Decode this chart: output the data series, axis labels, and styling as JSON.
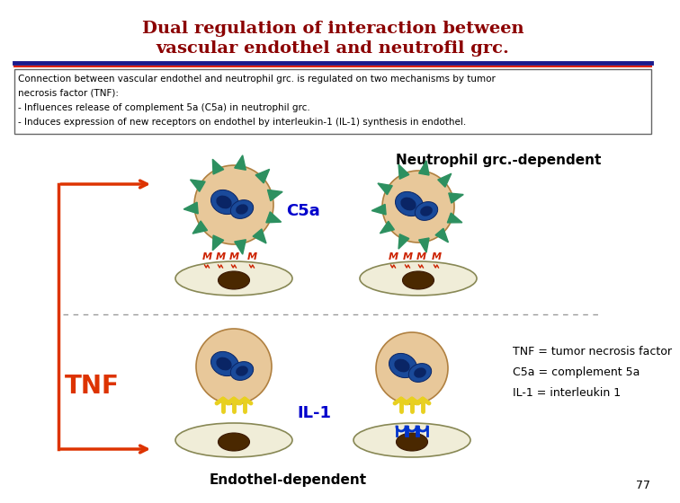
{
  "title_line1": "Dual regulation of interaction between",
  "title_line2": "vascular endothel and neutrofil grc.",
  "title_color": "#8B0000",
  "title_fontsize": 14,
  "sep_color_top": "#1a1a8c",
  "sep_color_bot": "#dd2200",
  "text_box_lines": [
    "Connection between vascular endothel and neutrophil grc. is regulated on two mechanisms by tumor",
    "necrosis factor (TNF):",
    "- Influences release of complement 5a (C5a) in neutrophil grc.",
    "- Induces expression of new receptors on endothel by interleukin-1 (IL-1) synthesis in endothel."
  ],
  "neutrophil_label": "Neutrophil grc.-dependent",
  "endothel_label": "Endothel-dependent",
  "C5a_label": "C5a",
  "IL1_label": "IL-1",
  "TNF_label": "TNF",
  "legend_text": "TNF = tumor necrosis factor\nC5a = complement 5a\nIL-1 = interleukin 1",
  "page_number": "77",
  "bg_color": "#ffffff",
  "arrow_color": "#dd3300",
  "cell_body_color": "#e8c89a",
  "nucleus_outer_color": "#1a4a9a",
  "nucleus_inner_color": "#0a2565",
  "dark_nucleus_color": "#4a2800",
  "endothel_cell_color": "#f0edd8",
  "endothel_edge_color": "#888855",
  "spike_color": "#2d9060",
  "receptor_yellow": "#e8d020",
  "receptor_blue": "#0033cc",
  "m_color": "#cc2200",
  "c5a_color": "#0000cc",
  "il1_color": "#0000cc",
  "tnf_color": "#dd3300"
}
